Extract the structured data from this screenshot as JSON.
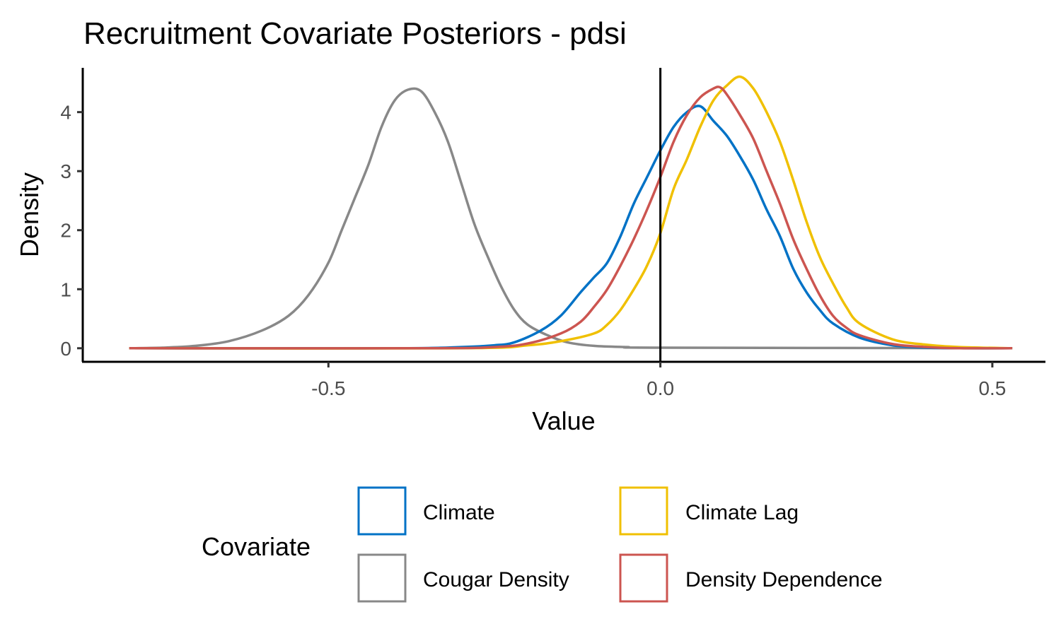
{
  "chart_data": {
    "type": "line",
    "title": "Recruitment Covariate Posteriors - pdsi",
    "xlabel": "Value",
    "ylabel": "Density",
    "xlim": [
      -0.87,
      0.58
    ],
    "ylim": [
      -0.23,
      4.75
    ],
    "x_ticks": [
      -0.5,
      0.0,
      0.5
    ],
    "x_tick_labels": [
      "-0.5",
      "0.0",
      "0.5"
    ],
    "y_ticks": [
      0,
      1,
      2,
      3,
      4
    ],
    "y_tick_labels": [
      "0",
      "1",
      "2",
      "3",
      "4"
    ],
    "reference_line_x": 0,
    "grid": false,
    "legend": {
      "title": "Covariate",
      "position": "bottom",
      "items": [
        {
          "name": "Climate",
          "color": "#0072C6"
        },
        {
          "name": "Climate Lag",
          "color": "#F0C000"
        },
        {
          "name": "Cougar Density",
          "color": "#888888"
        },
        {
          "name": "Density Dependence",
          "color": "#CC5550"
        }
      ]
    },
    "series": [
      {
        "name": "Climate",
        "color": "#0072C6",
        "x": [
          -0.8,
          -0.4,
          -0.3,
          -0.25,
          -0.22,
          -0.18,
          -0.15,
          -0.12,
          -0.1,
          -0.08,
          -0.06,
          -0.04,
          -0.02,
          0.0,
          0.02,
          0.04,
          0.06,
          0.08,
          0.1,
          0.12,
          0.14,
          0.16,
          0.18,
          0.2,
          0.22,
          0.24,
          0.26,
          0.3,
          0.35,
          0.4,
          0.45,
          0.53
        ],
        "y": [
          0.0,
          0.0,
          0.02,
          0.05,
          0.1,
          0.3,
          0.55,
          0.95,
          1.2,
          1.45,
          1.9,
          2.45,
          2.9,
          3.35,
          3.75,
          4.0,
          4.1,
          3.85,
          3.6,
          3.25,
          2.85,
          2.35,
          1.9,
          1.35,
          0.95,
          0.65,
          0.42,
          0.18,
          0.05,
          0.01,
          0.0,
          0.0
        ]
      },
      {
        "name": "Climate Lag",
        "color": "#F0C000",
        "x": [
          -0.8,
          -0.3,
          -0.2,
          -0.15,
          -0.1,
          -0.08,
          -0.06,
          -0.04,
          -0.02,
          0.0,
          0.02,
          0.04,
          0.06,
          0.08,
          0.1,
          0.12,
          0.14,
          0.16,
          0.18,
          0.2,
          0.22,
          0.24,
          0.26,
          0.28,
          0.3,
          0.35,
          0.4,
          0.45,
          0.53
        ],
        "y": [
          0.0,
          0.0,
          0.05,
          0.12,
          0.25,
          0.4,
          0.65,
          1.0,
          1.4,
          1.95,
          2.7,
          3.2,
          3.75,
          4.2,
          4.45,
          4.6,
          4.4,
          4.0,
          3.5,
          2.85,
          2.15,
          1.55,
          1.1,
          0.7,
          0.42,
          0.15,
          0.06,
          0.02,
          0.0
        ]
      },
      {
        "name": "Cougar Density",
        "color": "#888888",
        "x": [
          -0.8,
          -0.75,
          -0.7,
          -0.65,
          -0.6,
          -0.56,
          -0.53,
          -0.5,
          -0.48,
          -0.46,
          -0.44,
          -0.42,
          -0.4,
          -0.38,
          -0.36,
          -0.34,
          -0.32,
          -0.3,
          -0.28,
          -0.26,
          -0.24,
          -0.22,
          -0.2,
          -0.17,
          -0.14,
          -0.1,
          -0.05,
          0.0,
          0.53
        ],
        "y": [
          0.0,
          0.01,
          0.04,
          0.12,
          0.3,
          0.55,
          0.9,
          1.45,
          2.0,
          2.55,
          3.1,
          3.75,
          4.2,
          4.38,
          4.35,
          4.0,
          3.5,
          2.8,
          2.1,
          1.55,
          1.05,
          0.65,
          0.4,
          0.22,
          0.1,
          0.04,
          0.02,
          0.01,
          0.0
        ]
      },
      {
        "name": "Density Dependence",
        "color": "#CC5550",
        "x": [
          -0.8,
          -0.35,
          -0.25,
          -0.2,
          -0.15,
          -0.12,
          -0.1,
          -0.08,
          -0.06,
          -0.04,
          -0.02,
          0.0,
          0.02,
          0.04,
          0.06,
          0.08,
          0.09,
          0.1,
          0.12,
          0.14,
          0.16,
          0.18,
          0.2,
          0.22,
          0.24,
          0.26,
          0.28,
          0.3,
          0.35,
          0.4,
          0.45,
          0.53
        ],
        "y": [
          0.0,
          0.0,
          0.02,
          0.08,
          0.25,
          0.45,
          0.7,
          1.0,
          1.4,
          1.85,
          2.35,
          2.9,
          3.5,
          3.95,
          4.25,
          4.4,
          4.42,
          4.3,
          3.95,
          3.55,
          3.0,
          2.45,
          1.85,
          1.35,
          0.9,
          0.55,
          0.35,
          0.22,
          0.07,
          0.02,
          0.0,
          0.0
        ]
      }
    ]
  }
}
